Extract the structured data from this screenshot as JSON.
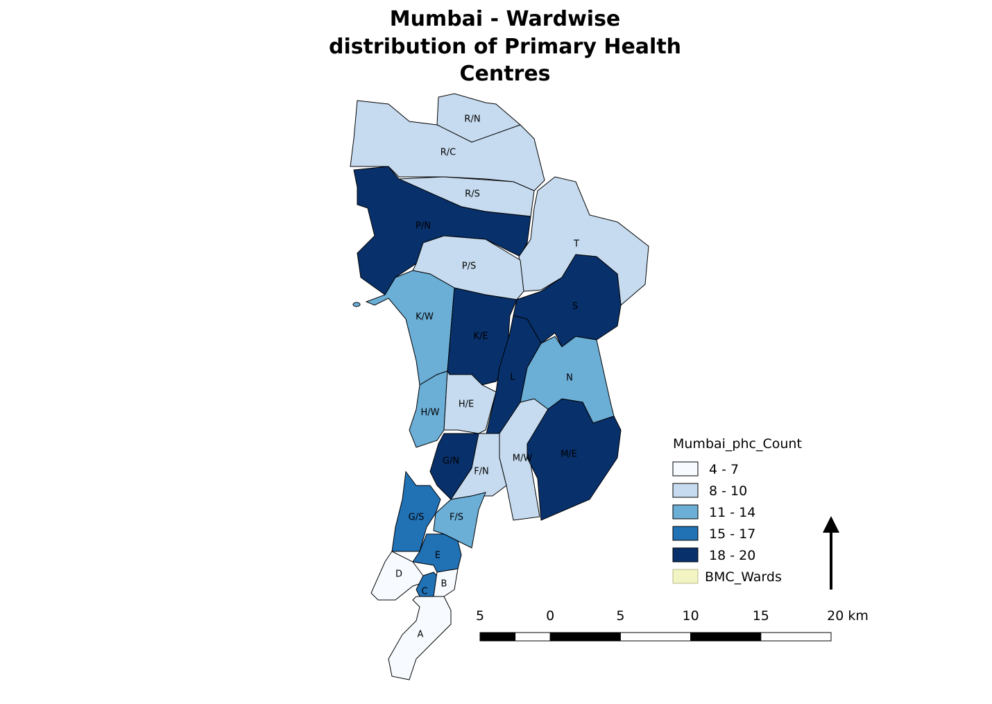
{
  "title": [
    "Mumbai - Wardwise",
    "distribution of Primary Health",
    "Centres"
  ],
  "wards": [
    {
      "label": "R/N",
      "color": "#c6dbef"
    },
    {
      "label": "R/C",
      "color": "#c6dbef"
    },
    {
      "label": "R/S",
      "color": "#c6dbef"
    },
    {
      "label": "P/N",
      "color": "#08306b"
    },
    {
      "label": "T",
      "color": "#c6dbef"
    },
    {
      "label": "P/S",
      "color": "#c6dbef"
    },
    {
      "label": "K/W",
      "color": "#6baed6"
    },
    {
      "label": "K/E",
      "color": "#08306b"
    },
    {
      "label": "S",
      "color": "#08306b"
    },
    {
      "label": "L",
      "color": "#08306b"
    },
    {
      "label": "N",
      "color": "#6baed6"
    },
    {
      "label": "H/W",
      "color": "#6baed6"
    },
    {
      "label": "H/E",
      "color": "#c6dbef"
    },
    {
      "label": "M/W",
      "color": "#c6dbef"
    },
    {
      "label": "M/E",
      "color": "#08306b"
    },
    {
      "label": "G/N",
      "color": "#08306b"
    },
    {
      "label": "F/N",
      "color": "#c6dbef"
    },
    {
      "label": "G/S",
      "color": "#2171b5"
    },
    {
      "label": "F/S",
      "color": "#6baed6"
    },
    {
      "label": "E",
      "color": "#2171b5"
    },
    {
      "label": "D",
      "color": "#f7fbff"
    },
    {
      "label": "C",
      "color": "#2171b5"
    },
    {
      "label": "B",
      "color": "#f7fbff"
    },
    {
      "label": "A",
      "color": "#f7fbff"
    }
  ],
  "legend": {
    "title": "Mumbai_phc_Count",
    "items": [
      {
        "label": "4 - 7",
        "color": "#f7fbff"
      },
      {
        "label": "8 - 10",
        "color": "#c6dbef"
      },
      {
        "label": "11 - 14",
        "color": "#6baed6"
      },
      {
        "label": "15 - 17",
        "color": "#2171b5"
      },
      {
        "label": "18 - 20",
        "color": "#08306b"
      },
      {
        "label": "BMC_Wards",
        "color": "#f2f4c4"
      }
    ]
  },
  "scale_bar": {
    "ticks": [
      {
        "value": -5,
        "label": "5"
      },
      0,
      5,
      10,
      15,
      {
        "value": 20,
        "label": "20 km"
      }
    ]
  }
}
